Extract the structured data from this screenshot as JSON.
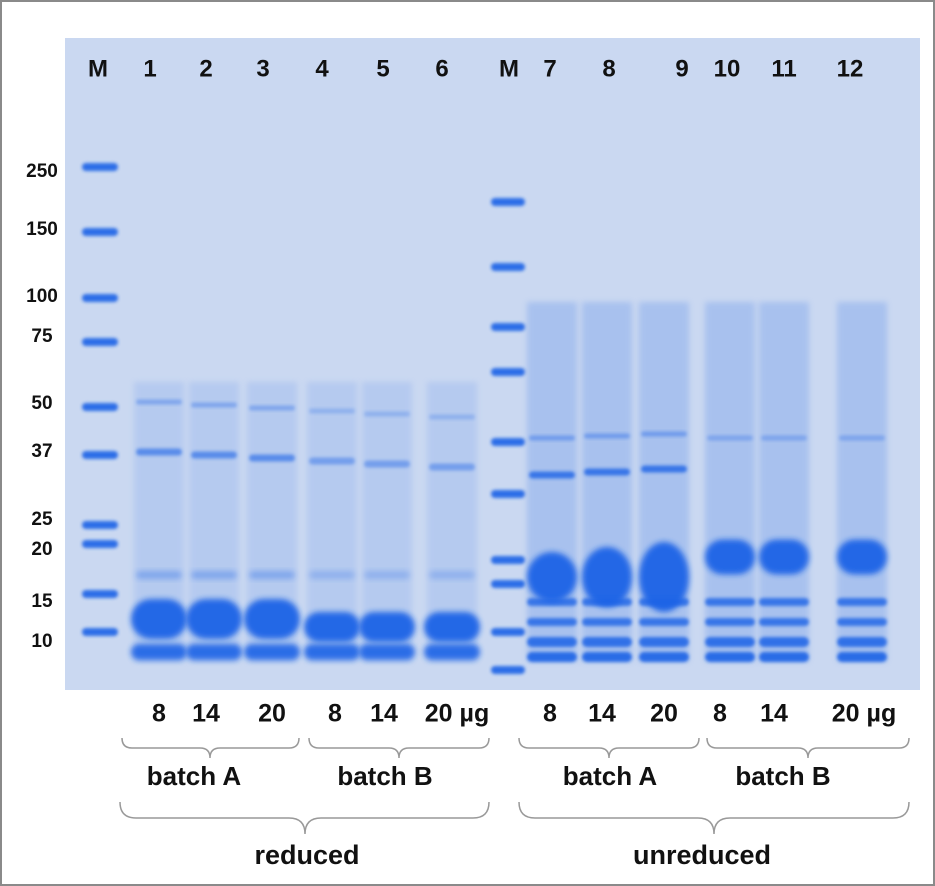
{
  "lanes": [
    "M",
    "1",
    "2",
    "3",
    "4",
    "5",
    "6",
    "M",
    "7",
    "8",
    "9",
    "10",
    "11",
    "12"
  ],
  "mw_markers": [
    "250",
    "150",
    "100",
    "75",
    "50",
    "37",
    "25",
    "20",
    "15",
    "10"
  ],
  "loads": [
    "8",
    "14",
    "20",
    "8",
    "14",
    "20 µg",
    "8",
    "14",
    "20",
    "8",
    "14",
    "20 µg"
  ],
  "batches": [
    "batch A",
    "batch B",
    "batch A",
    "batch B"
  ],
  "conditions": [
    "reduced",
    "unreduced"
  ]
}
